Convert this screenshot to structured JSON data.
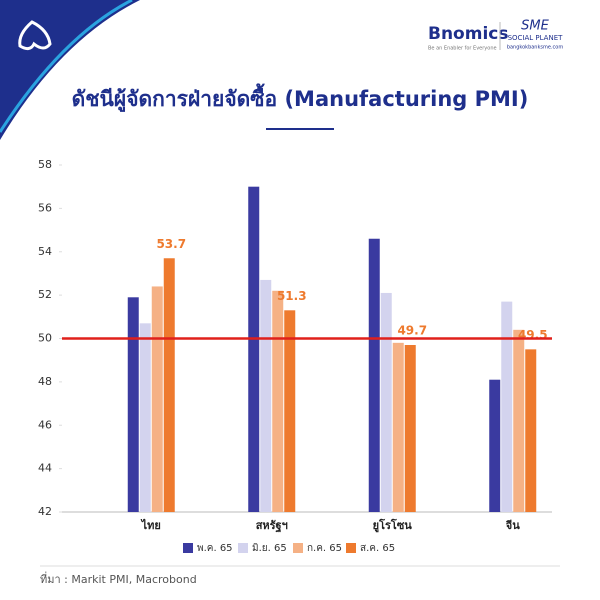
{
  "header": {
    "brand": "Bnomics",
    "tagline": "Be an Enabler for Everyone",
    "partner": "SME",
    "partner_sub": "SOCIAL PLANET",
    "partner_url": "bangkokbanksme.com"
  },
  "chart_data": {
    "type": "bar",
    "title": "ดัชนีผู้จัดการฝ่ายจัดซื้อ (Manufacturing PMI)",
    "categories": [
      "ไทย",
      "สหรัฐฯ",
      "ยูโรโซน",
      "จีน"
    ],
    "series": [
      {
        "name": "พ.ค. 65",
        "color": "#3a3aa0",
        "values": [
          51.9,
          57.0,
          54.6,
          48.1
        ]
      },
      {
        "name": "มิ.ย. 65",
        "color": "#d3d3ee",
        "values": [
          50.7,
          52.7,
          52.1,
          51.7
        ]
      },
      {
        "name": "ก.ค. 65",
        "color": "#f5b185",
        "values": [
          52.4,
          52.2,
          49.8,
          50.4
        ]
      },
      {
        "name": "ส.ค. 65",
        "color": "#ee7a2e",
        "values": [
          53.7,
          51.3,
          49.7,
          49.5
        ],
        "data_labels": true
      }
    ],
    "ylim": [
      42,
      58
    ],
    "yticks": [
      42,
      44,
      46,
      48,
      50,
      52,
      54,
      56,
      58
    ],
    "grid": false,
    "reference_line": {
      "value": 50,
      "color": "#e0201b"
    },
    "legend": "bottom",
    "source": "ที่มา : Markit PMI, Macrobond"
  }
}
